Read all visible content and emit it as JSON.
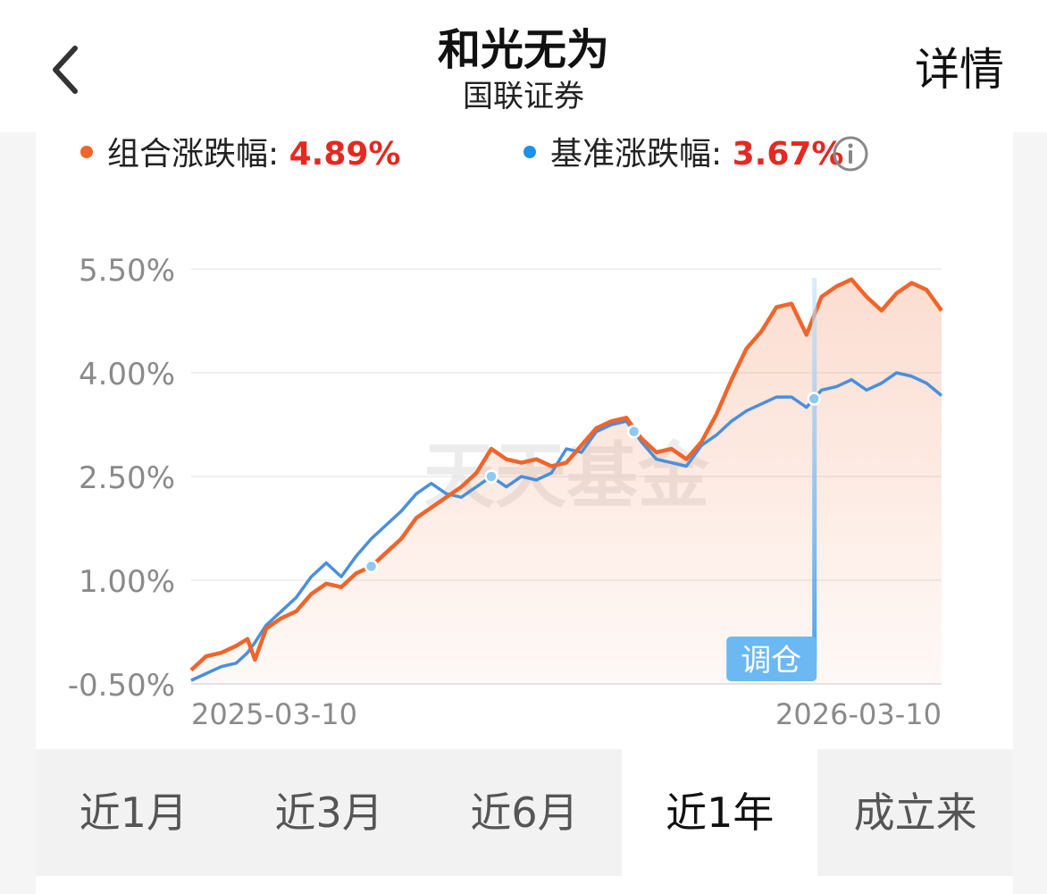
{
  "header": {
    "title": "和光无为",
    "subtitle": "国联证券",
    "detail_label": "详情"
  },
  "legend": {
    "portfolio_label": "组合涨跌幅:",
    "portfolio_value": "4.89%",
    "benchmark_label": "基准涨跌幅:",
    "benchmark_value": "3.67%"
  },
  "colors": {
    "portfolio": "#f0652b",
    "benchmark": "#4a8fdc",
    "value_text": "#e52821",
    "marker": "#8ec9f0"
  },
  "watermark": "天天基金",
  "tabs": [
    {
      "label": "近1月",
      "active": false
    },
    {
      "label": "近3月",
      "active": false
    },
    {
      "label": "近6月",
      "active": false
    },
    {
      "label": "近1年",
      "active": true
    },
    {
      "label": "成立来",
      "active": false
    }
  ],
  "chart_data": {
    "type": "line",
    "ylim": [
      -0.5,
      5.5
    ],
    "yticks": [
      "5.50%",
      "4.00%",
      "2.50%",
      "1.00%",
      "-0.50%"
    ],
    "ytick_values": [
      5.5,
      4.0,
      2.5,
      1.0,
      -0.5
    ],
    "x_start_label": "2025-03-10",
    "x_end_label": "2026-03-10",
    "grid": true,
    "x": [
      0.0,
      0.02,
      0.04,
      0.06,
      0.075,
      0.085,
      0.1,
      0.12,
      0.14,
      0.16,
      0.18,
      0.2,
      0.22,
      0.24,
      0.26,
      0.28,
      0.3,
      0.32,
      0.34,
      0.36,
      0.38,
      0.4,
      0.42,
      0.44,
      0.46,
      0.48,
      0.5,
      0.52,
      0.54,
      0.56,
      0.58,
      0.6,
      0.62,
      0.64,
      0.66,
      0.68,
      0.7,
      0.72,
      0.74,
      0.76,
      0.78,
      0.8,
      0.82,
      0.84,
      0.86,
      0.88,
      0.9,
      0.92,
      0.94,
      0.96,
      0.98,
      1.0
    ],
    "series": [
      {
        "name": "组合涨跌幅",
        "values": [
          -0.3,
          -0.1,
          -0.05,
          0.05,
          0.15,
          -0.15,
          0.3,
          0.45,
          0.55,
          0.8,
          0.95,
          0.9,
          1.1,
          1.2,
          1.4,
          1.6,
          1.9,
          2.05,
          2.2,
          2.35,
          2.55,
          2.9,
          2.75,
          2.7,
          2.75,
          2.65,
          2.7,
          2.95,
          3.2,
          3.3,
          3.35,
          3.05,
          2.85,
          2.9,
          2.75,
          3.0,
          3.4,
          3.9,
          4.35,
          4.6,
          4.95,
          5.0,
          4.55,
          5.1,
          5.25,
          5.35,
          5.1,
          4.9,
          5.15,
          5.3,
          5.2,
          4.9
        ]
      },
      {
        "name": "基准涨跌幅",
        "values": [
          -0.45,
          -0.35,
          -0.25,
          -0.2,
          -0.05,
          0.1,
          0.35,
          0.55,
          0.75,
          1.05,
          1.25,
          1.05,
          1.35,
          1.6,
          1.8,
          2.0,
          2.25,
          2.4,
          2.25,
          2.2,
          2.35,
          2.5,
          2.35,
          2.5,
          2.45,
          2.55,
          2.9,
          2.85,
          3.15,
          3.25,
          3.3,
          3.0,
          2.75,
          2.7,
          2.65,
          2.95,
          3.1,
          3.3,
          3.45,
          3.55,
          3.65,
          3.65,
          3.5,
          3.75,
          3.8,
          3.9,
          3.75,
          3.85,
          4.0,
          3.95,
          3.85,
          3.67
        ]
      }
    ],
    "markers": [
      0.24,
      0.4,
      0.59,
      0.83
    ],
    "rebalance_label": "调仓",
    "rebalance_x": 0.83
  }
}
